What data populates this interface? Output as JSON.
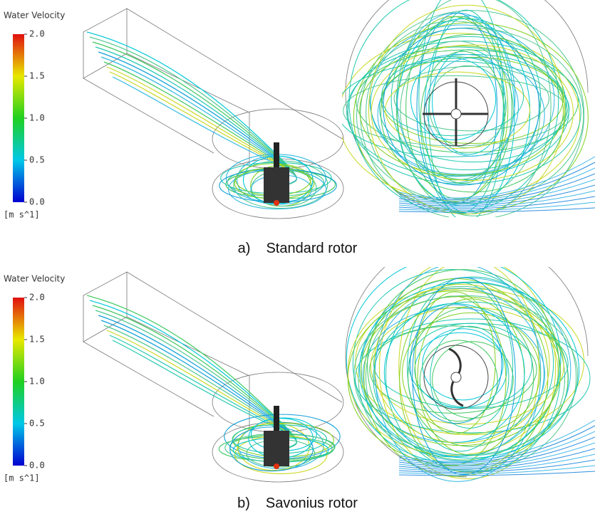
{
  "panels": [
    {
      "legend": {
        "title": "Water Velocity",
        "ticks": [
          "2.0",
          "1.5",
          "1.0",
          "0.5",
          "0.0"
        ],
        "unit": "[m s^1]"
      },
      "caption": {
        "label": "a)",
        "text": "Standard rotor"
      }
    },
    {
      "legend": {
        "title": "Water Velocity",
        "ticks": [
          "2.0",
          "1.5",
          "1.0",
          "0.5",
          "0.0"
        ],
        "unit": "[m s^1]"
      },
      "caption": {
        "label": "b)",
        "text": "Savonius rotor"
      }
    }
  ]
}
